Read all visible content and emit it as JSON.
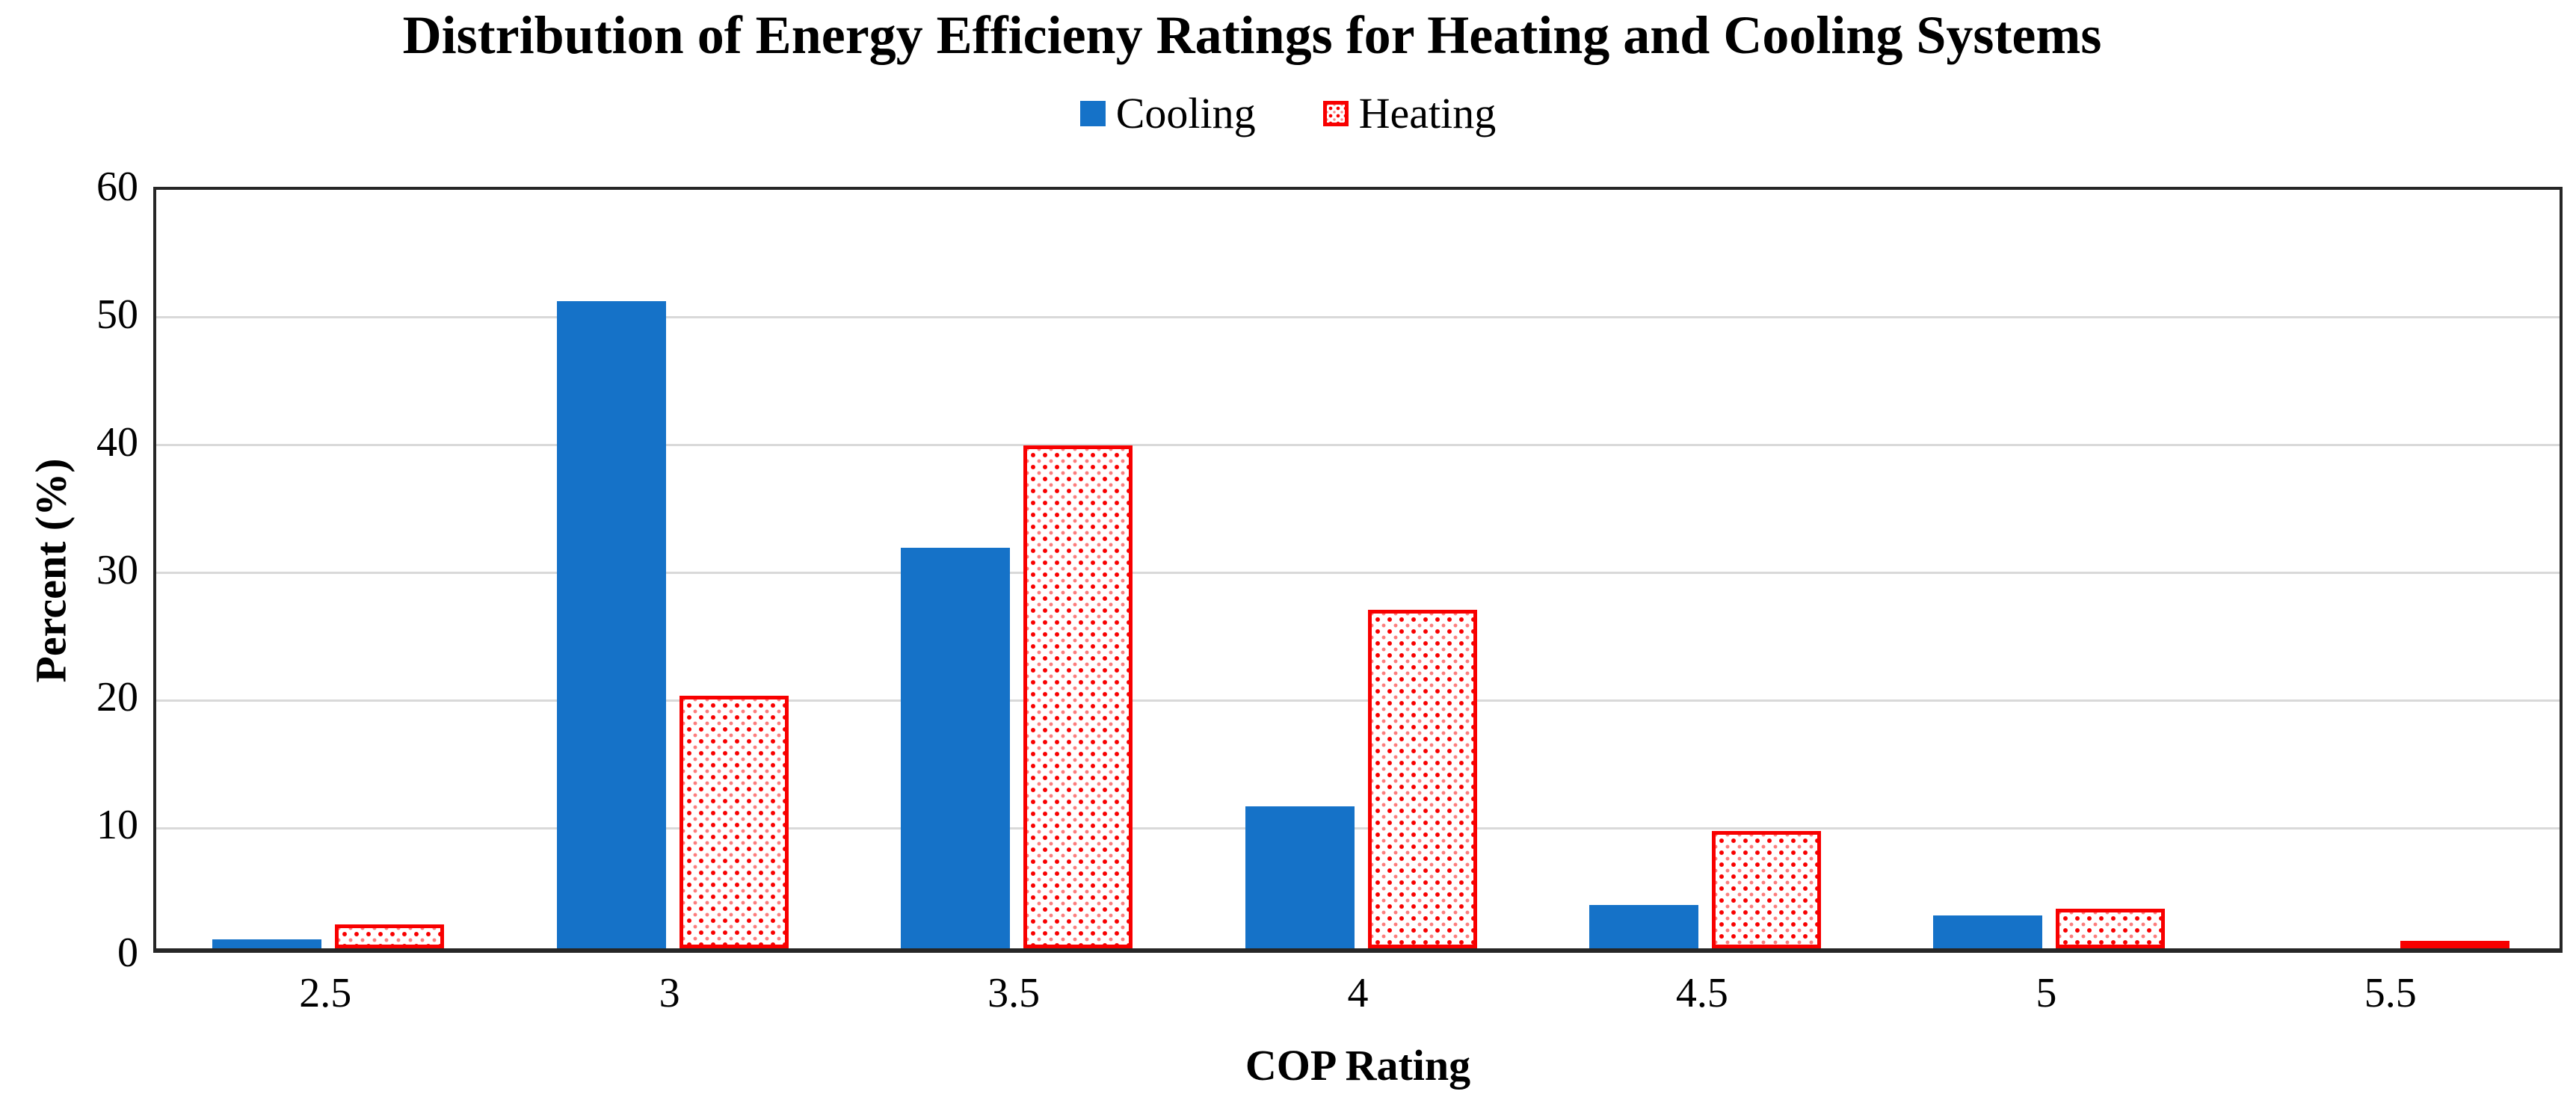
{
  "title": "Distribution of Energy Efficieny Ratings for Heating and Cooling Systems",
  "legend": {
    "items": [
      {
        "label": "Cooling"
      },
      {
        "label": "Heating"
      }
    ]
  },
  "x_axis": {
    "title": "COP Rating"
  },
  "y_axis": {
    "title": "Percent (%)"
  },
  "colors": {
    "cooling_blue": "#1572C8",
    "heating_red": "#F80000",
    "gridline": "#D9D9D9",
    "axis": "#262626"
  },
  "chart_data": {
    "type": "bar",
    "title": "Distribution of Energy Efficieny Ratings for Heating and Cooling Systems",
    "categories": [
      "2.5",
      "3",
      "3.5",
      "4",
      "4.5",
      "5",
      "5.5"
    ],
    "series": [
      {
        "name": "Cooling",
        "values": [
          0.7,
          50.7,
          31.4,
          11.1,
          3.4,
          2.6,
          0.0
        ]
      },
      {
        "name": "Heating",
        "values": [
          1.9,
          19.8,
          39.4,
          26.5,
          9.2,
          3.1,
          0.2
        ]
      }
    ],
    "xlabel": "COP Rating",
    "ylabel": "Percent (%)",
    "ylim": [
      0,
      60
    ],
    "yticks": [
      0,
      10,
      20,
      30,
      40,
      50,
      60
    ],
    "grid": true,
    "legend_position": "top-center"
  }
}
